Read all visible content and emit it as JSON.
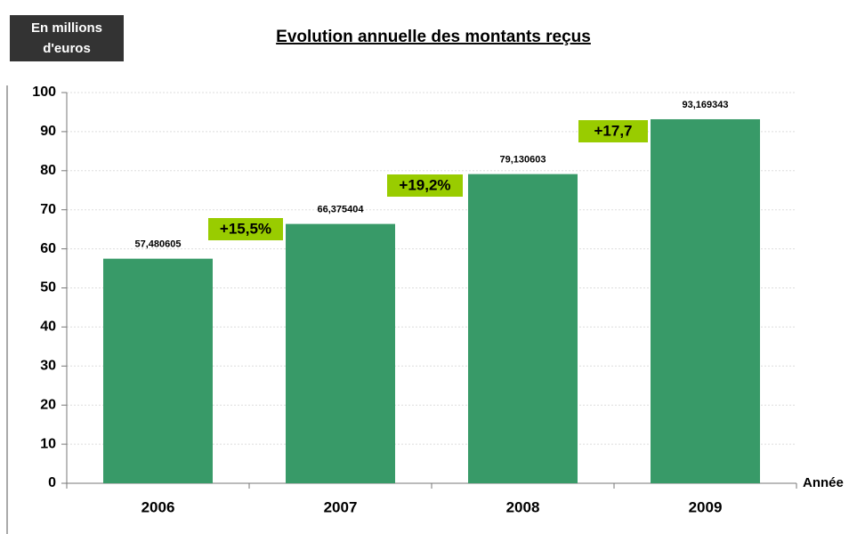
{
  "chart_data": {
    "type": "bar",
    "title": "Evolution annuelle des montants reçus",
    "ylabel": [
      "En millions",
      "d'euros"
    ],
    "xlabel": "Année",
    "categories": [
      "2006",
      "2007",
      "2008",
      "2009"
    ],
    "values": [
      57.480605,
      66.375404,
      79.130603,
      93.169343
    ],
    "value_labels": [
      "57,480605",
      "66,375404",
      "79,130603",
      "93,169343"
    ],
    "color": "#389a68",
    "ylim": [
      0,
      100
    ],
    "yticks": [
      0,
      10,
      20,
      30,
      40,
      50,
      60,
      70,
      80,
      90,
      100
    ],
    "grid": true,
    "annotations": [
      "+15,5%",
      "+19,2%",
      "+17,7"
    ]
  }
}
